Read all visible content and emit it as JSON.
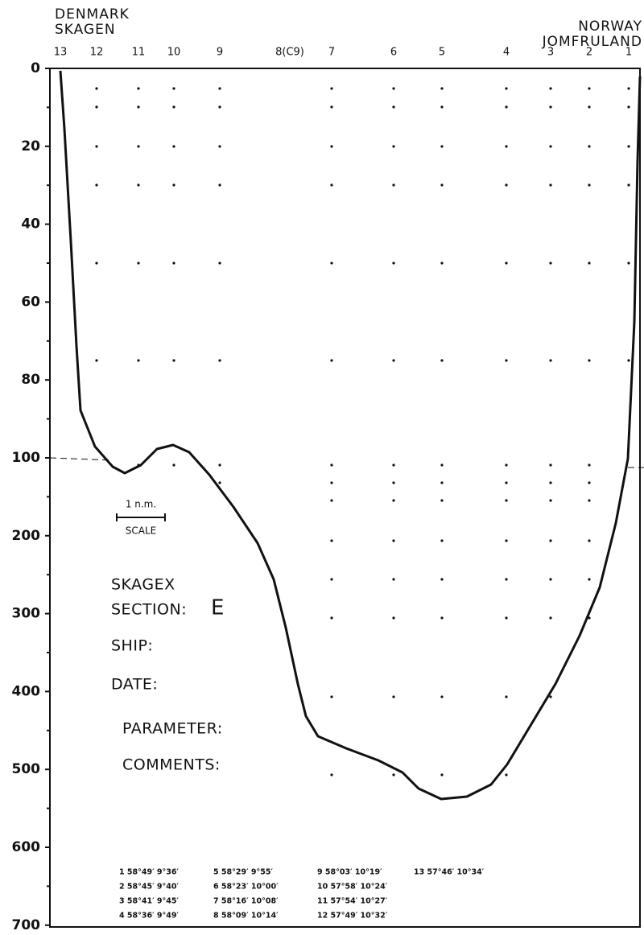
{
  "header": {
    "left": [
      "DENMARK",
      "SKAGEN"
    ],
    "right": [
      "NORWAY",
      "JOMFRULAND"
    ]
  },
  "stations": [
    "13",
    "12",
    "11",
    "10",
    "9",
    "8(C9)",
    "7",
    "6",
    "5",
    "4",
    "3",
    "2",
    "1"
  ],
  "depth_axis": [
    "0",
    "20",
    "40",
    "60",
    "80",
    "100",
    "200",
    "300",
    "400",
    "500",
    "600",
    "700"
  ],
  "scale": {
    "value": "1 n.m.",
    "label": "SCALE"
  },
  "form": {
    "title": "SKAGEX",
    "section_label": "SECTION:",
    "section": "E",
    "fields": [
      "SHIP:",
      "DATE:",
      "PARAMETER:",
      "COMMENTS:"
    ]
  },
  "coordinates": [
    [
      "1 58°49′ 9°36′",
      "2 58°45′ 9°40′",
      "3 58°41′ 9°45′",
      "4 58°36′ 9°49′"
    ],
    [
      "5 58°29′ 9°55′",
      "6 58°23′ 10°00′",
      "7 58°16′ 10°08′",
      "8 58°09′ 10°14′"
    ],
    [
      "9 58°03′ 10°19′",
      "10 57°58′ 10°24′",
      "11 57°54′ 10°27′",
      "12 57°49′ 10°32′"
    ],
    [
      "13 57°46′ 10°34′"
    ]
  ]
}
